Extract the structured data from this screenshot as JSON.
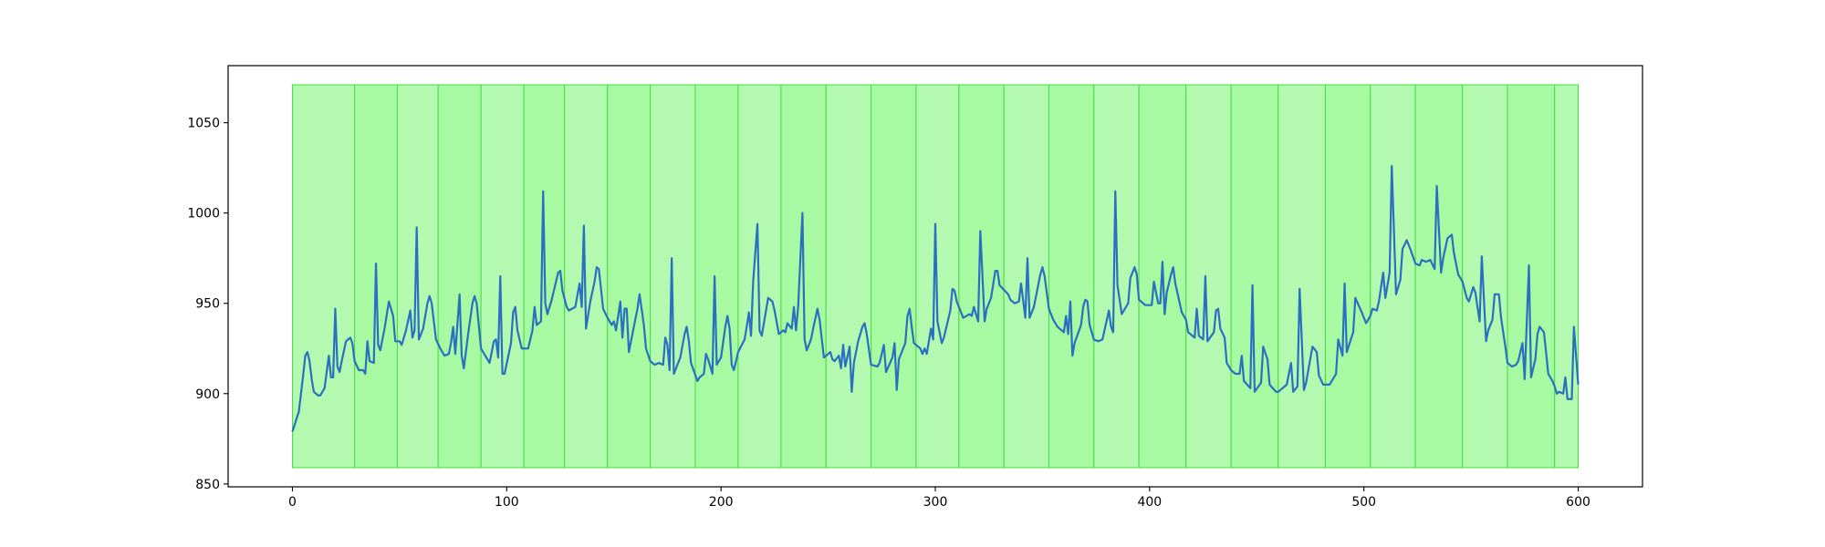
{
  "chart_data": {
    "type": "line",
    "x": [
      0,
      3,
      5,
      6,
      7,
      8,
      9,
      10,
      12,
      13,
      15,
      17,
      18,
      19,
      20,
      21,
      22,
      23,
      25,
      27,
      28,
      29,
      31,
      33,
      34,
      35,
      36,
      38,
      39,
      40,
      41,
      43,
      45,
      47,
      48,
      50,
      51,
      53,
      55,
      56,
      57,
      58,
      59,
      61,
      63,
      64,
      65,
      67,
      69,
      71,
      73,
      74,
      75,
      76,
      78,
      79,
      80,
      82,
      84,
      85,
      86,
      88,
      90,
      92,
      94,
      95,
      96,
      97,
      98,
      99,
      102,
      103,
      104,
      105,
      107,
      110,
      112,
      113,
      114,
      116,
      117,
      118,
      119,
      121,
      124,
      125,
      126,
      128,
      129,
      132,
      134,
      135,
      136,
      137,
      139,
      141,
      142,
      143,
      145,
      147,
      149,
      150,
      151,
      153,
      154,
      155,
      156,
      157,
      159,
      161,
      162,
      164,
      165,
      167,
      169,
      171,
      173,
      174,
      175,
      176,
      177,
      178,
      181,
      183,
      184,
      185,
      186,
      189,
      190,
      192,
      193,
      194,
      196,
      197,
      198,
      200,
      202,
      203,
      204,
      205,
      206,
      208,
      211,
      212,
      213,
      214,
      215,
      217,
      218,
      219,
      221,
      222,
      224,
      225,
      227,
      229,
      230,
      231,
      233,
      234,
      235,
      236,
      238,
      239,
      240,
      242,
      243,
      245,
      246,
      248,
      251,
      252,
      253,
      255,
      256,
      257,
      258,
      260,
      261,
      262,
      264,
      266,
      267,
      268,
      270,
      273,
      274,
      276,
      277,
      280,
      281,
      282,
      283,
      286,
      287,
      288,
      289,
      290,
      293,
      294,
      295,
      296,
      298,
      299,
      300,
      301,
      303,
      304,
      307,
      308,
      309,
      310,
      313,
      316,
      317,
      318,
      320,
      321,
      323,
      324,
      326,
      328,
      329,
      330,
      334,
      335,
      337,
      339,
      340,
      342,
      343,
      344,
      346,
      349,
      350,
      351,
      353,
      355,
      357,
      360,
      361,
      362,
      363,
      364,
      365,
      368,
      369,
      370,
      371,
      372,
      374,
      376,
      378,
      381,
      382,
      383,
      384,
      385,
      387,
      390,
      391,
      393,
      394,
      395,
      398,
      401,
      402,
      404,
      405,
      406,
      407,
      408,
      410,
      411,
      412,
      415,
      417,
      418,
      421,
      422,
      423,
      425,
      426,
      427,
      430,
      431,
      432,
      433,
      435,
      436,
      438,
      440,
      442,
      443,
      444,
      447,
      448,
      449,
      452,
      453,
      455,
      456,
      459,
      460,
      463,
      464,
      466,
      467,
      469,
      470,
      472,
      473,
      476,
      478,
      479,
      481,
      484,
      485,
      487,
      488,
      490,
      491,
      492,
      495,
      496,
      499,
      501,
      503,
      504,
      506,
      507,
      509,
      510,
      512,
      513,
      515,
      517,
      518,
      520,
      522,
      524,
      526,
      527,
      529,
      531,
      533,
      534,
      536,
      537,
      539,
      541,
      542,
      544,
      545,
      546,
      548,
      549,
      551,
      552,
      554,
      555,
      557,
      558,
      560,
      561,
      563,
      564,
      566,
      567,
      569,
      571,
      572,
      574,
      575,
      577,
      578,
      580,
      581,
      582,
      584,
      585,
      586,
      588,
      589,
      590,
      591,
      593,
      594,
      595,
      597,
      598,
      600
    ],
    "series": [
      {
        "color": "#2a6fc0",
        "values": [
          879,
          890,
          910,
          921,
          923,
          918,
          908,
          901,
          899,
          899,
          903,
          921,
          909,
          909,
          947,
          915,
          912,
          918,
          929,
          931,
          928,
          918,
          913,
          913,
          911,
          929,
          918,
          917,
          972,
          927,
          924,
          936,
          951,
          943,
          929,
          929,
          927,
          935,
          946,
          931,
          935,
          992,
          930,
          936,
          950,
          954,
          950,
          930,
          925,
          921,
          922,
          928,
          937,
          922,
          955,
          921,
          914,
          933,
          950,
          954,
          950,
          925,
          921,
          917,
          929,
          930,
          920,
          965,
          911,
          911,
          928,
          945,
          948,
          935,
          925,
          925,
          935,
          948,
          938,
          940,
          1012,
          950,
          944,
          952,
          967,
          968,
          957,
          948,
          946,
          948,
          961,
          948,
          993,
          936,
          951,
          962,
          970,
          969,
          947,
          942,
          938,
          940,
          935,
          951,
          931,
          947,
          947,
          923,
          935,
          947,
          955,
          938,
          925,
          918,
          916,
          917,
          916,
          931,
          927,
          913,
          975,
          911,
          920,
          933,
          937,
          929,
          917,
          907,
          909,
          911,
          922,
          919,
          911,
          965,
          916,
          920,
          937,
          943,
          936,
          916,
          913,
          923,
          930,
          937,
          945,
          932,
          962,
          994,
          935,
          932,
          946,
          953,
          951,
          946,
          933,
          935,
          934,
          939,
          936,
          948,
          935,
          948,
          1000,
          930,
          924,
          930,
          936,
          947,
          941,
          920,
          923,
          919,
          918,
          921,
          914,
          927,
          915,
          926,
          901,
          917,
          929,
          937,
          939,
          933,
          916,
          915,
          917,
          927,
          912,
          920,
          928,
          902,
          919,
          928,
          943,
          947,
          937,
          928,
          925,
          922,
          925,
          922,
          936,
          930,
          994,
          940,
          928,
          931,
          946,
          958,
          957,
          951,
          942,
          944,
          943,
          948,
          940,
          990,
          940,
          947,
          953,
          968,
          968,
          960,
          955,
          952,
          950,
          951,
          961,
          942,
          975,
          942,
          948,
          966,
          970,
          965,
          947,
          941,
          937,
          934,
          943,
          933,
          951,
          921,
          928,
          938,
          948,
          952,
          951,
          938,
          930,
          929,
          930,
          946,
          937,
          934,
          1012,
          960,
          944,
          950,
          964,
          970,
          966,
          952,
          949,
          949,
          962,
          950,
          950,
          973,
          944,
          956,
          966,
          970,
          961,
          945,
          941,
          934,
          931,
          947,
          932,
          930,
          965,
          929,
          934,
          946,
          947,
          936,
          931,
          917,
          913,
          911,
          911,
          921,
          907,
          903,
          960,
          901,
          906,
          926,
          919,
          905,
          901,
          901,
          904,
          905,
          917,
          901,
          904,
          958,
          902,
          906,
          926,
          923,
          910,
          905,
          905,
          907,
          911,
          930,
          921,
          961,
          923,
          934,
          953,
          945,
          939,
          943,
          947,
          946,
          951,
          967,
          953,
          967,
          1026,
          955,
          963,
          980,
          985,
          979,
          972,
          971,
          974,
          973,
          974,
          969,
          1015,
          967,
          975,
          986,
          988,
          978,
          966,
          964,
          962,
          953,
          951,
          959,
          956,
          940,
          976,
          929,
          935,
          941,
          955,
          955,
          942,
          926,
          917,
          915,
          916,
          918,
          928,
          908,
          971,
          909,
          919,
          933,
          937,
          934,
          923,
          911,
          907,
          904,
          900,
          901,
          900,
          909,
          897,
          897,
          937,
          905
        ]
      }
    ],
    "span_edges": [
      0,
      29,
      49,
      68,
      88,
      108,
      127,
      147,
      167,
      188,
      208,
      228,
      249,
      270,
      291,
      311,
      332,
      353,
      374,
      395,
      417,
      438,
      460,
      482,
      503,
      524,
      546,
      567,
      589,
      600
    ],
    "span_colors": [
      "#b4f9b0",
      "#a7f9a2",
      "#b4f9b0",
      "#a7f9a2",
      "#b4f9b0",
      "#a7f9a2",
      "#b4f9b0",
      "#a7f9a2",
      "#b4f9b0",
      "#a7f9a2",
      "#b4f9b0",
      "#a7f9a2",
      "#b4f9b0",
      "#a7f9a2",
      "#b4f9b0",
      "#a7f9a2",
      "#b4f9b0",
      "#a7f9a2",
      "#b4f9b0",
      "#a7f9a2",
      "#b4f9b0",
      "#a7f9a2",
      "#b4f9b0",
      "#a7f9a2",
      "#b4f9b0",
      "#a7f9a2",
      "#b4f9b0",
      "#a7f9a2",
      "#b4f9b0"
    ],
    "span_edge_color": "#3fe03f",
    "span_ylim": [
      859,
      1071
    ],
    "xlim": [
      -30,
      630
    ],
    "xticks": [
      0,
      100,
      200,
      300,
      400,
      500,
      600
    ],
    "ylim": [
      848.4,
      1081.6
    ],
    "yticks": [
      850,
      900,
      950,
      1000,
      1050
    ]
  }
}
